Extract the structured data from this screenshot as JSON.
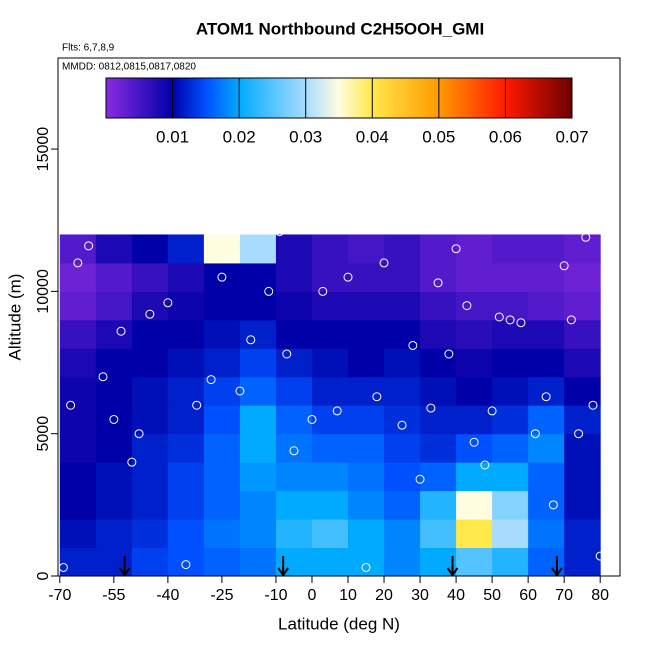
{
  "chart_data": {
    "type": "heatmap",
    "title": "ATOM1 Northbound C2H5OOH_GMI",
    "subtitle": "Flts: 6,7,8,9",
    "annotation": "MMDD: 0812,0815,0817,0820",
    "x_label": "Latitude (deg N)",
    "y_label": "Altitude (m)",
    "xlim": [
      -70.5,
      85.5
    ],
    "ylim": [
      0,
      18200
    ],
    "xticks": [
      -70,
      -55,
      -40,
      -25,
      -10,
      0,
      10,
      20,
      30,
      40,
      50,
      60,
      70,
      80
    ],
    "yticks": [
      0,
      5000,
      10000,
      15000
    ],
    "x_bins": [
      -70,
      -60,
      -50,
      -40,
      -30,
      -20,
      -10,
      0,
      10,
      20,
      30,
      40,
      50,
      60,
      70,
      80
    ],
    "y_bins": [
      0,
      1000,
      2000,
      3000,
      4000,
      5000,
      6000,
      7000,
      8000,
      9000,
      10000,
      11000,
      12000
    ],
    "z": [
      [
        0.012,
        0.012,
        0.014,
        0.015,
        0.016,
        0.017,
        0.02,
        0.02,
        0.02,
        0.018,
        0.02,
        0.025,
        0.022,
        0.016,
        0.012
      ],
      [
        0.011,
        0.012,
        0.013,
        0.015,
        0.017,
        0.018,
        0.022,
        0.024,
        0.02,
        0.018,
        0.024,
        0.04,
        0.03,
        0.017,
        0.012
      ],
      [
        0.01,
        0.011,
        0.012,
        0.014,
        0.016,
        0.018,
        0.02,
        0.02,
        0.018,
        0.016,
        0.022,
        0.035,
        0.028,
        0.016,
        0.011
      ],
      [
        0.01,
        0.011,
        0.012,
        0.014,
        0.016,
        0.019,
        0.018,
        0.018,
        0.017,
        0.015,
        0.016,
        0.02,
        0.02,
        0.016,
        0.011
      ],
      [
        0.009,
        0.01,
        0.012,
        0.013,
        0.016,
        0.02,
        0.017,
        0.016,
        0.016,
        0.014,
        0.013,
        0.015,
        0.016,
        0.018,
        0.011
      ],
      [
        0.009,
        0.01,
        0.011,
        0.012,
        0.015,
        0.02,
        0.016,
        0.014,
        0.014,
        0.013,
        0.012,
        0.012,
        0.013,
        0.016,
        0.012
      ],
      [
        0.009,
        0.01,
        0.011,
        0.012,
        0.014,
        0.016,
        0.014,
        0.012,
        0.012,
        0.012,
        0.011,
        0.01,
        0.011,
        0.012,
        0.01
      ],
      [
        0.008,
        0.01,
        0.01,
        0.011,
        0.012,
        0.014,
        0.012,
        0.011,
        0.01,
        0.011,
        0.01,
        0.009,
        0.01,
        0.01,
        0.008
      ],
      [
        0.006,
        0.008,
        0.01,
        0.01,
        0.011,
        0.012,
        0.01,
        0.01,
        0.01,
        0.01,
        0.008,
        0.007,
        0.008,
        0.008,
        0.006
      ],
      [
        0.003,
        0.005,
        0.008,
        0.009,
        0.01,
        0.01,
        0.009,
        0.008,
        0.008,
        0.008,
        0.006,
        0.005,
        0.005,
        0.004,
        0.003
      ],
      [
        0.002,
        0.004,
        0.006,
        0.008,
        0.01,
        0.01,
        0.008,
        0.006,
        0.006,
        0.006,
        0.004,
        0.003,
        0.003,
        0.003,
        0.002
      ],
      [
        0.004,
        0.008,
        0.01,
        0.012,
        0.035,
        0.03,
        0.008,
        0.006,
        0.005,
        0.006,
        0.004,
        0.003,
        0.004,
        0.004,
        0.003
      ]
    ],
    "zlim": [
      0,
      0.07
    ],
    "zticks": [
      0.01,
      0.02,
      0.03,
      0.04,
      0.05,
      0.06,
      0.07
    ],
    "colorscale": [
      [
        0,
        "#8a2be2"
      ],
      [
        0.01,
        "#0000a8"
      ],
      [
        0.015,
        "#0050ff"
      ],
      [
        0.02,
        "#00aaff"
      ],
      [
        0.03,
        "#a8dcff"
      ],
      [
        0.035,
        "#fffde0"
      ],
      [
        0.04,
        "#ffe84a"
      ],
      [
        0.05,
        "#ff9a00"
      ],
      [
        0.06,
        "#ff1a00"
      ],
      [
        0.07,
        "#6b0000"
      ]
    ],
    "samples": {
      "color": "#ffffff",
      "x": [
        -69,
        -67,
        -65,
        -62,
        -58,
        -55,
        -53,
        -50,
        -48,
        -45,
        -40,
        -35,
        -32,
        -28,
        -25,
        -22,
        -20,
        -17,
        -12,
        -9,
        -7,
        -5,
        0,
        3,
        7,
        10,
        15,
        18,
        20,
        25,
        28,
        30,
        33,
        35,
        38,
        40,
        43,
        45,
        48,
        50,
        52,
        55,
        58,
        62,
        65,
        67,
        70,
        72,
        74,
        76,
        78,
        80
      ],
      "y": [
        300,
        6000,
        11000,
        11600,
        7000,
        5500,
        8600,
        4000,
        5000,
        9200,
        9600,
        400,
        6000,
        6900,
        10500,
        11200,
        6500,
        8300,
        10000,
        12100,
        7800,
        4400,
        5500,
        10000,
        5800,
        10500,
        300,
        6300,
        11000,
        5300,
        8100,
        3400,
        5900,
        10300,
        7800,
        11500,
        9500,
        4700,
        3900,
        5800,
        9100,
        9000,
        8900,
        5000,
        6300,
        2500,
        10900,
        9000,
        5000,
        11900,
        6000,
        700
      ]
    },
    "arrows_x": [
      -52,
      -8,
      39,
      68
    ]
  }
}
